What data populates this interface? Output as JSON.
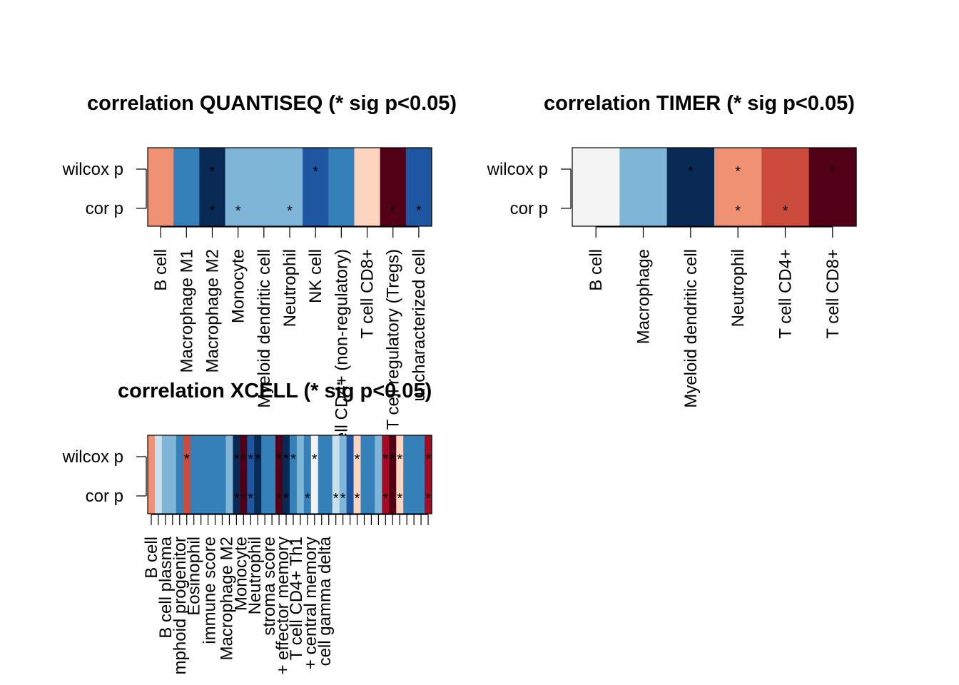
{
  "chart_data": [
    {
      "type": "heatmap",
      "title": "correlation QUANTISEQ (* sig p<0.05)",
      "rows": [
        "wilcox p",
        "cor p"
      ],
      "categories": [
        "B cell",
        "Macrophage M1",
        "Macrophage M2",
        "Monocyte",
        "Myeloid dendritic cell",
        "Neutrophil",
        "NK cell",
        "T cell CD4+ (non-regulatory)",
        "T cell CD8+",
        "T cell regulatory (Tregs)",
        "uncharacterized cell"
      ],
      "colors": [
        "#EF9273",
        "#3680BA",
        "#082A55",
        "#7FB6D7",
        "#7FB6D7",
        "#7FB6D7",
        "#1E56A2",
        "#3680BA",
        "#FDD4BE",
        "#510018",
        "#1E56A2"
      ],
      "sig": {
        "wilcox p": [
          false,
          false,
          true,
          false,
          false,
          false,
          true,
          false,
          false,
          false,
          false
        ],
        "cor p": [
          false,
          false,
          true,
          true,
          false,
          true,
          false,
          false,
          false,
          true,
          true
        ]
      }
    },
    {
      "type": "heatmap",
      "title": "correlation TIMER (* sig p<0.05)",
      "rows": [
        "wilcox p",
        "cor p"
      ],
      "categories": [
        "B cell",
        "Macrophage",
        "Myeloid dendritic cell",
        "Neutrophil",
        "T cell CD4+",
        "T cell CD8+"
      ],
      "colors": [
        "#F3F3F3",
        "#7FB6D7",
        "#082A55",
        "#EF9273",
        "#CC4B3C",
        "#510018"
      ],
      "sig": {
        "wilcox p": [
          false,
          false,
          true,
          true,
          false,
          true
        ],
        "cor p": [
          false,
          false,
          false,
          true,
          true,
          false
        ]
      }
    },
    {
      "type": "heatmap",
      "title": "correlation XCELL (* sig p<0.05)",
      "rows": [
        "wilcox p",
        "cor p"
      ],
      "categories": [
        "B cell",
        "",
        "B cell plasma",
        "",
        "mphoid progenitor",
        "",
        "Eosinophil",
        "",
        "",
        "",
        "immune score",
        "",
        "Macrophage M2",
        "",
        "",
        "Monocyte",
        "",
        "Neutrophil",
        "",
        "",
        "stroma score",
        "",
        "",
        "+ effector memory",
        "",
        "T cell CD4+ Th1",
        "",
        "",
        "+ central memory",
        "",
        "cell gamma delta",
        "",
        "",
        "",
        "",
        "",
        "",
        "",
        "",
        ""
      ],
      "colors": [
        "#EF9273",
        "#C9E0EF",
        "#7FB6D7",
        "#7FB6D7",
        "#3680BA",
        "#CC4B3C",
        "#3680BA",
        "#3680BA",
        "#3680BA",
        "#3680BA",
        "#3680BA",
        "#7FB6D7",
        "#082A55",
        "#510018",
        "#1E56A2",
        "#082A55",
        "#3680BA",
        "#3680BA",
        "#510018",
        "#082A55",
        "#3680BA",
        "#7FB6D7",
        "#3680BA",
        "#F3F3F3",
        "#3680BA",
        "#3680BA",
        "#C9E0EF",
        "#7FB6D7",
        "#1E56A2",
        "#FDD4BE",
        "#3680BA",
        "#3680BA",
        "#7FB6D7",
        "#A60B26",
        "#510018",
        "#FDD4BE",
        "#3680BA",
        "#3680BA",
        "#3680BA",
        "#A60B26"
      ],
      "sig": {
        "wilcox p": [
          false,
          false,
          false,
          false,
          false,
          true,
          false,
          false,
          false,
          false,
          false,
          false,
          true,
          true,
          true,
          true,
          false,
          false,
          true,
          true,
          true,
          false,
          false,
          true,
          false,
          false,
          false,
          false,
          false,
          true,
          false,
          false,
          false,
          true,
          true,
          true,
          false,
          false,
          false,
          true
        ],
        "cor p": [
          false,
          false,
          false,
          false,
          false,
          false,
          false,
          false,
          false,
          false,
          false,
          false,
          true,
          true,
          true,
          false,
          false,
          false,
          true,
          true,
          false,
          false,
          true,
          false,
          false,
          false,
          true,
          true,
          false,
          true,
          false,
          false,
          false,
          true,
          false,
          true,
          false,
          false,
          false,
          true
        ]
      }
    }
  ]
}
